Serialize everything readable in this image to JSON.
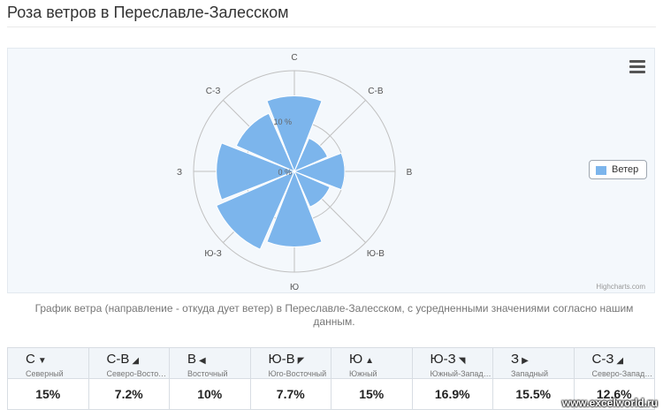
{
  "page": {
    "title": "Роза ветров в Переславле-Залесском",
    "caption": "График ветра (направление - откуда дует ветер) в Переславле-Залесском, с усредненными значениями согласно нашим данным.",
    "watermark": "www.excelworld.ru"
  },
  "colors": {
    "series": "#7cb5ec",
    "grid": "#c0c0c0",
    "plot_bg": "#f4f8fc"
  },
  "chart": {
    "menu_icon": "hamburger-menu-icon",
    "credits": "Highcharts.com"
  },
  "chart_data": {
    "type": "bar",
    "polar": true,
    "title": "",
    "categories": [
      "С",
      "С-В",
      "В",
      "Ю-В",
      "Ю",
      "Ю-З",
      "З",
      "С-З"
    ],
    "series": [
      {
        "name": "Ветер",
        "values": [
          15,
          7.2,
          10,
          7.7,
          15,
          16.9,
          15.5,
          12.6
        ]
      }
    ],
    "radial_axis": {
      "range": [
        0,
        20
      ],
      "ticks": [
        0,
        10
      ],
      "tick_labels": [
        "0 %",
        "10 %"
      ]
    },
    "grid": true,
    "legend": {
      "position": "right",
      "entries": [
        "Ветер"
      ]
    }
  },
  "table": {
    "columns": [
      {
        "code": "С",
        "arrow": "▼",
        "name": "Северный",
        "value": "15%"
      },
      {
        "code": "С-В",
        "arrow": "◢",
        "name": "Северо-Восточный",
        "value": "7.2%"
      },
      {
        "code": "В",
        "arrow": "◀",
        "name": "Восточный",
        "value": "10%"
      },
      {
        "code": "Ю-В",
        "arrow": "◤",
        "name": "Юго-Восточный",
        "value": "7.7%"
      },
      {
        "code": "Ю",
        "arrow": "▲",
        "name": "Южный",
        "value": "15%"
      },
      {
        "code": "Ю-З",
        "arrow": "◥",
        "name": "Южный-Западный",
        "value": "16.9%"
      },
      {
        "code": "З",
        "arrow": "▶",
        "name": "Западный",
        "value": "15.5%"
      },
      {
        "code": "С-З",
        "arrow": "◢",
        "name": "Северо-Западный",
        "value": "12.6%"
      }
    ]
  }
}
